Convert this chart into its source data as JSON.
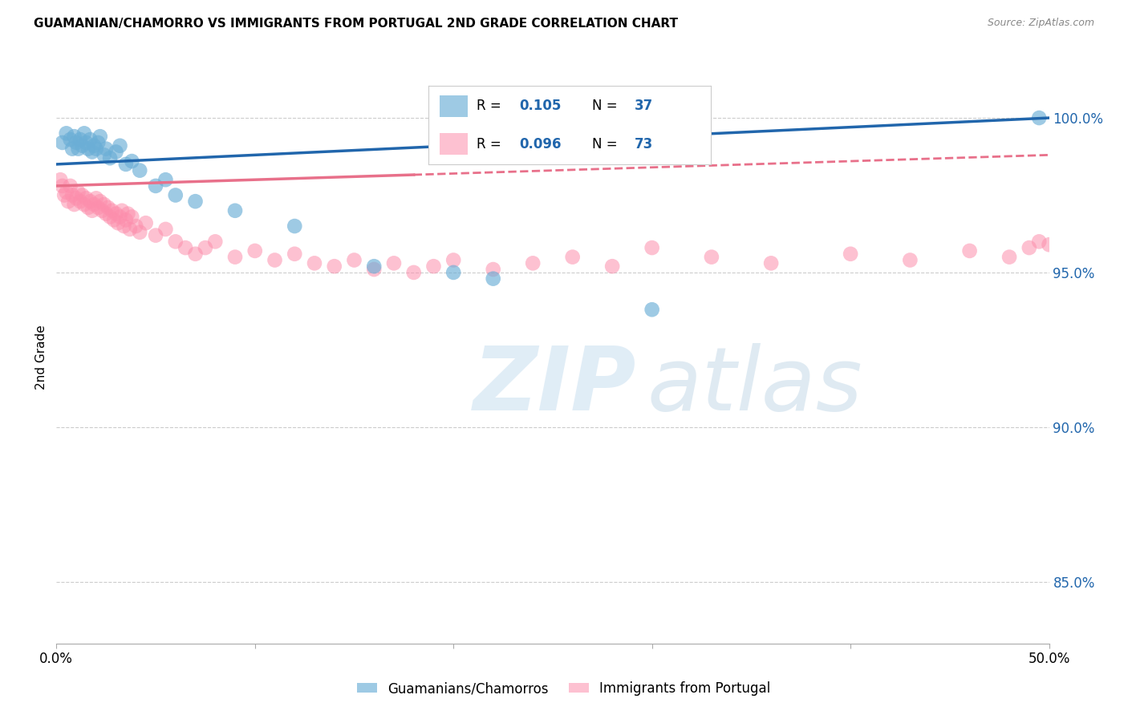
{
  "title": "GUAMANIAN/CHAMORRO VS IMMIGRANTS FROM PORTUGAL 2ND GRADE CORRELATION CHART",
  "source": "Source: ZipAtlas.com",
  "ylabel": "2nd Grade",
  "xlim": [
    0.0,
    50.0
  ],
  "ylim": [
    83.0,
    101.5
  ],
  "yticks": [
    85.0,
    90.0,
    95.0,
    100.0
  ],
  "ytick_labels": [
    "85.0%",
    "90.0%",
    "95.0%",
    "100.0%"
  ],
  "blue_R": 0.105,
  "blue_N": 37,
  "pink_R": 0.096,
  "pink_N": 73,
  "blue_color": "#6baed6",
  "pink_color": "#fc8eac",
  "blue_line_color": "#2166ac",
  "pink_line_color": "#e8708a",
  "legend_blue_label": "Guamanians/Chamorros",
  "legend_pink_label": "Immigrants from Portugal",
  "blue_line_x0": 0.0,
  "blue_line_y0": 98.5,
  "blue_line_x1": 50.0,
  "blue_line_y1": 100.0,
  "pink_line_x0": 0.0,
  "pink_line_y0": 97.8,
  "pink_line_x1": 50.0,
  "pink_line_y1": 98.8,
  "pink_solid_end": 18.0,
  "blue_points_x": [
    0.3,
    0.5,
    0.7,
    0.8,
    0.9,
    1.0,
    1.1,
    1.2,
    1.3,
    1.4,
    1.5,
    1.6,
    1.7,
    1.8,
    1.9,
    2.0,
    2.1,
    2.2,
    2.4,
    2.5,
    2.7,
    3.0,
    3.2,
    3.5,
    3.8,
    4.2,
    5.0,
    5.5,
    6.0,
    7.0,
    9.0,
    12.0,
    16.0,
    20.0,
    22.0,
    30.0,
    49.5
  ],
  "blue_points_y": [
    99.2,
    99.5,
    99.3,
    99.0,
    99.4,
    99.2,
    99.0,
    99.3,
    99.1,
    99.5,
    99.2,
    99.0,
    99.3,
    98.9,
    99.1,
    99.0,
    99.2,
    99.4,
    98.8,
    99.0,
    98.7,
    98.9,
    99.1,
    98.5,
    98.6,
    98.3,
    97.8,
    98.0,
    97.5,
    97.3,
    97.0,
    96.5,
    95.2,
    95.0,
    94.8,
    93.8,
    100.0
  ],
  "pink_points_x": [
    0.2,
    0.3,
    0.4,
    0.5,
    0.6,
    0.7,
    0.8,
    0.9,
    1.0,
    1.1,
    1.2,
    1.3,
    1.4,
    1.5,
    1.6,
    1.7,
    1.8,
    1.9,
    2.0,
    2.1,
    2.2,
    2.3,
    2.4,
    2.5,
    2.6,
    2.7,
    2.8,
    2.9,
    3.0,
    3.1,
    3.2,
    3.3,
    3.4,
    3.5,
    3.6,
    3.7,
    3.8,
    4.0,
    4.2,
    4.5,
    5.0,
    5.5,
    6.0,
    6.5,
    7.0,
    7.5,
    8.0,
    9.0,
    10.0,
    11.0,
    12.0,
    13.0,
    14.0,
    15.0,
    16.0,
    17.0,
    18.0,
    19.0,
    20.0,
    22.0,
    24.0,
    26.0,
    28.0,
    30.0,
    33.0,
    36.0,
    40.0,
    43.0,
    46.0,
    48.0,
    49.0,
    49.5,
    50.0
  ],
  "pink_points_y": [
    98.0,
    97.8,
    97.5,
    97.6,
    97.3,
    97.8,
    97.5,
    97.2,
    97.4,
    97.6,
    97.3,
    97.5,
    97.2,
    97.4,
    97.1,
    97.3,
    97.0,
    97.2,
    97.4,
    97.1,
    97.3,
    97.0,
    97.2,
    96.9,
    97.1,
    96.8,
    97.0,
    96.7,
    96.9,
    96.6,
    96.8,
    97.0,
    96.5,
    96.7,
    96.9,
    96.4,
    96.8,
    96.5,
    96.3,
    96.6,
    96.2,
    96.4,
    96.0,
    95.8,
    95.6,
    95.8,
    96.0,
    95.5,
    95.7,
    95.4,
    95.6,
    95.3,
    95.2,
    95.4,
    95.1,
    95.3,
    95.0,
    95.2,
    95.4,
    95.1,
    95.3,
    95.5,
    95.2,
    95.8,
    95.5,
    95.3,
    95.6,
    95.4,
    95.7,
    95.5,
    95.8,
    96.0,
    95.9
  ]
}
